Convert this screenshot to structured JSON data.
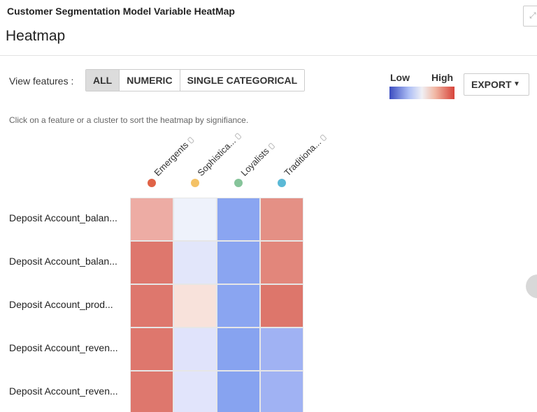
{
  "window": {
    "title": "Customer Segmentation Model Variable HeatMap"
  },
  "page": {
    "title": "Heatmap"
  },
  "view_features": {
    "label": "View features :",
    "options": [
      "ALL",
      "NUMERIC",
      "SINGLE CATEGORICAL"
    ],
    "selected": "ALL"
  },
  "legend": {
    "low": "Low",
    "high": "High"
  },
  "export": {
    "label": "EXPORT"
  },
  "hint": "Click on a feature or a cluster to sort the heatmap by signifiance.",
  "columns": [
    {
      "label": "Emergents",
      "color": "#e06347"
    },
    {
      "label": "Sophistica...",
      "color": "#f4c266"
    },
    {
      "label": "Loyalists",
      "color": "#86c49a"
    },
    {
      "label": "Traditiona...",
      "color": "#5bb9d6"
    }
  ],
  "rows": [
    {
      "label": "Deposit Account_balan...",
      "colors": [
        "#edaca4",
        "#eef2fb",
        "#8aa5f1",
        "#e49085"
      ]
    },
    {
      "label": "Deposit Account_balan...",
      "colors": [
        "#de776d",
        "#e2e6fa",
        "#8aa5f1",
        "#e2867b"
      ]
    },
    {
      "label": "Deposit Account_prod...",
      "colors": [
        "#de776d",
        "#f8e2db",
        "#8aa5f1",
        "#dd766b"
      ]
    },
    {
      "label": "Deposit Account_reven...",
      "colors": [
        "#de776d",
        "#e0e3fb",
        "#87a3f0",
        "#a0b2f3"
      ]
    },
    {
      "label": "Deposit Account_reven...",
      "colors": [
        "#de776d",
        "#e1e4fb",
        "#87a3f0",
        "#a0b2f3"
      ]
    }
  ]
}
